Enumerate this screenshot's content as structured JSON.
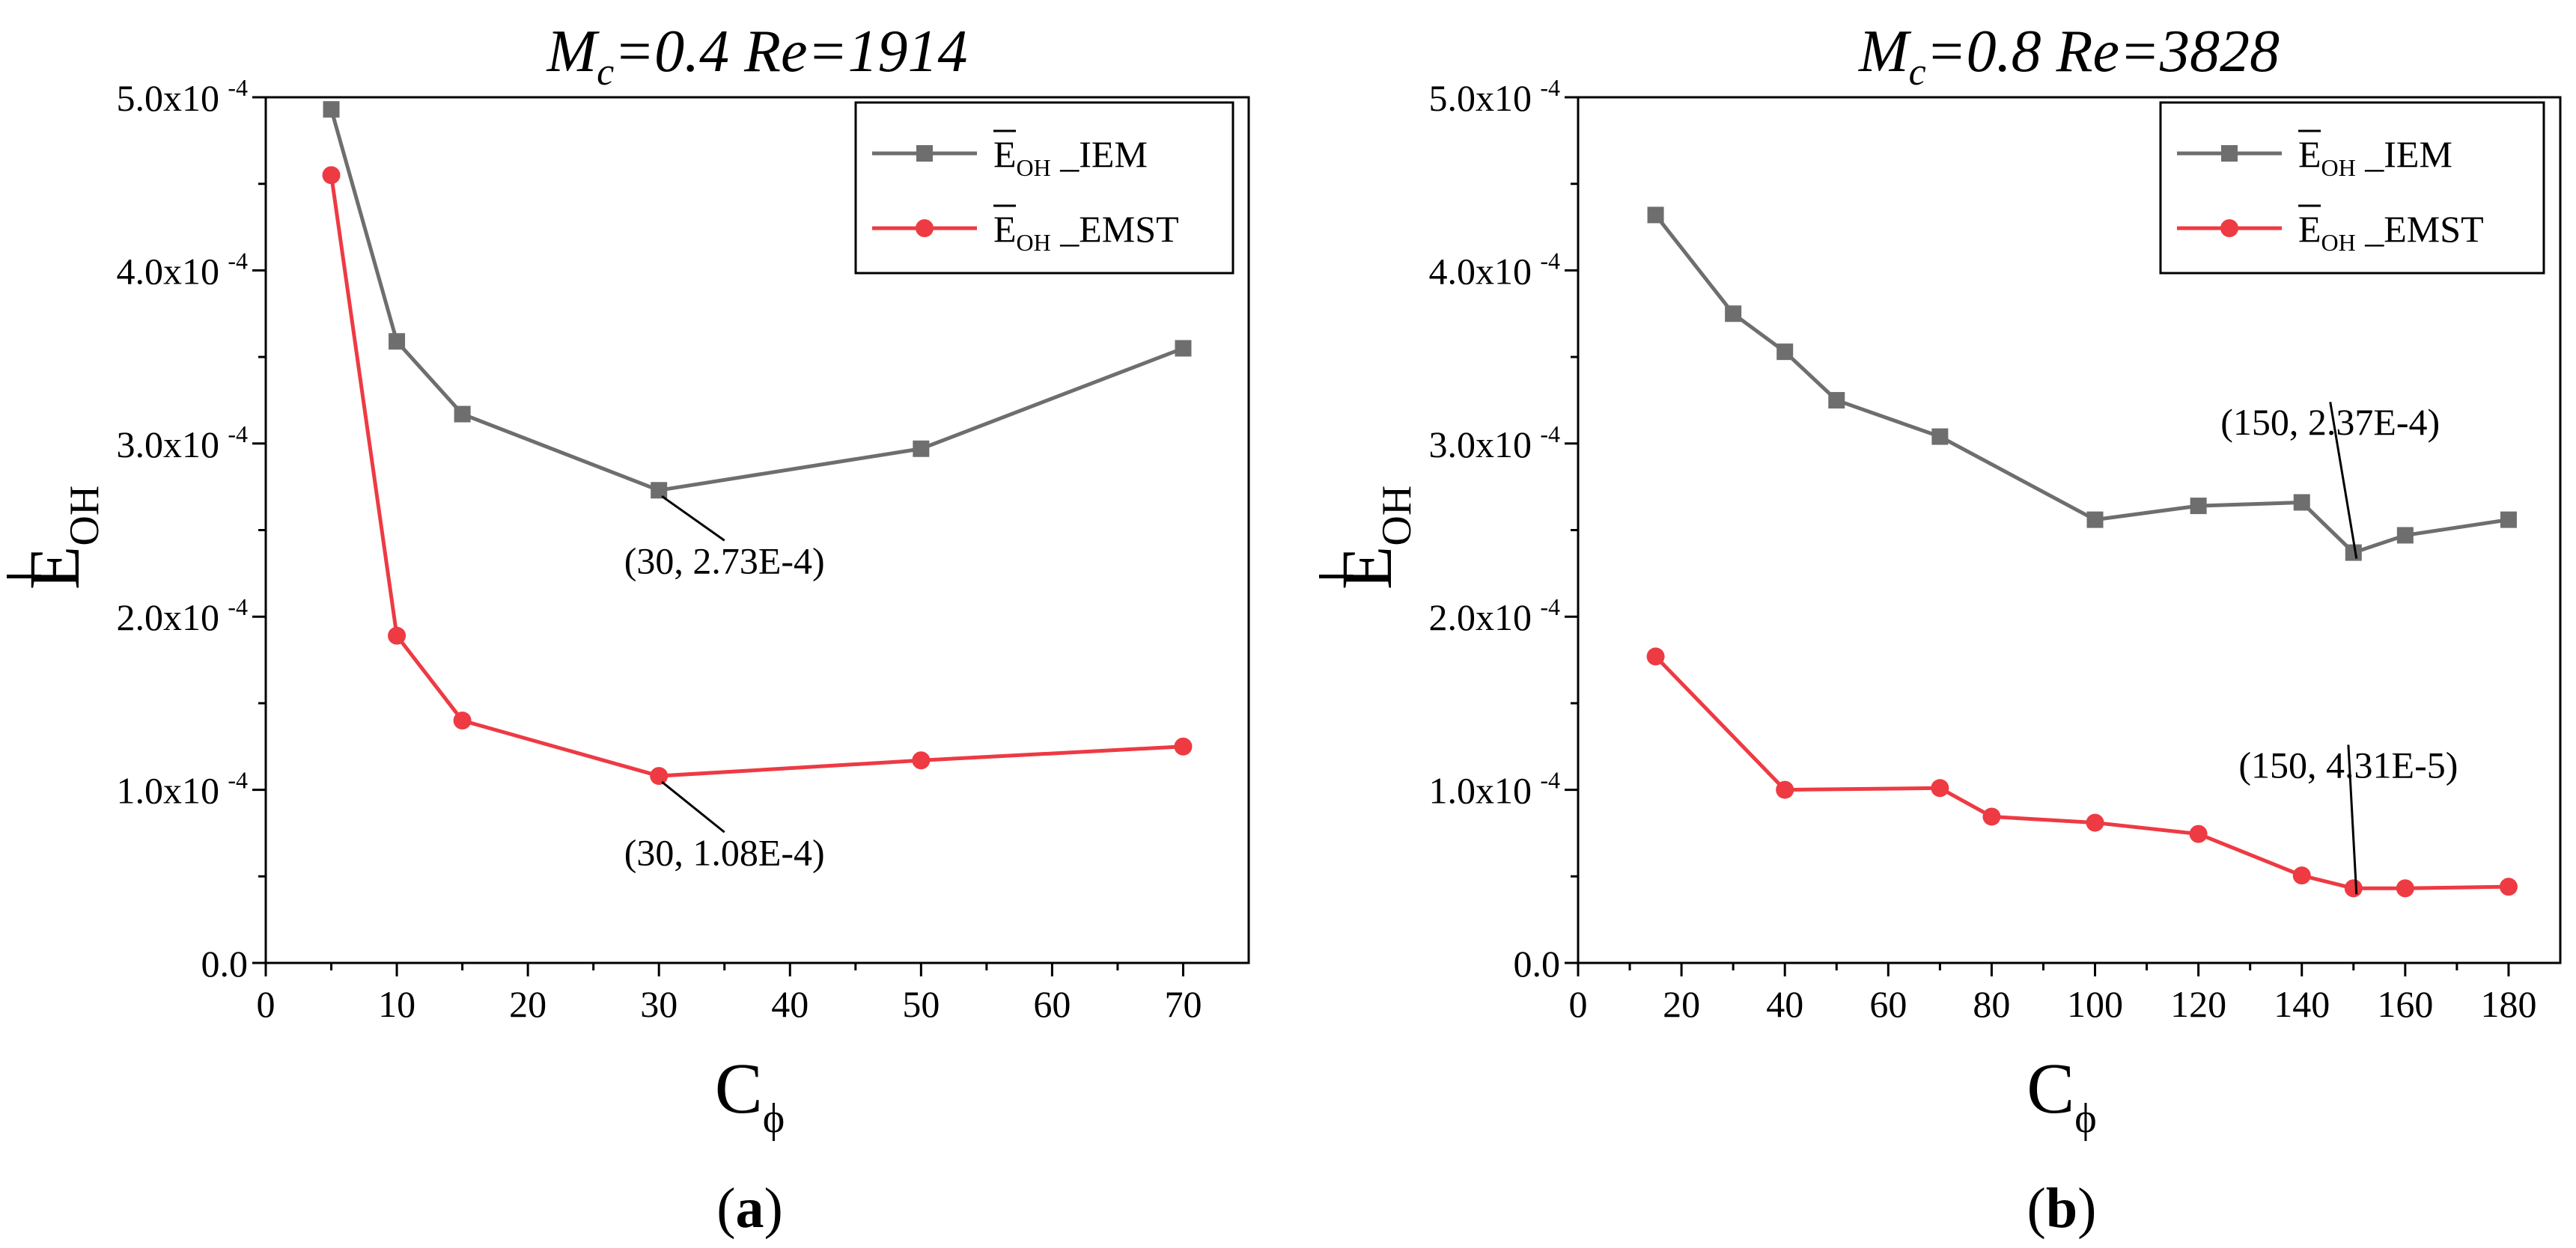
{
  "chart_data": [
    {
      "panel_label": "a",
      "type": "line",
      "title": {
        "m_main": "M",
        "m_sub": "c",
        "rest": "=0.4  Re=1914"
      },
      "xlabel": {
        "main": "C",
        "sub": "ϕ"
      },
      "ylabel": {
        "main": "E",
        "sub": "OH"
      },
      "xlim": [
        0,
        75
      ],
      "ylim": [
        0,
        0.0005
      ],
      "xticks": [
        0,
        10,
        20,
        30,
        40,
        50,
        60,
        70
      ],
      "yticks": [
        {
          "value": 0,
          "label": "0.0",
          "exp": ""
        },
        {
          "value": 0.0001,
          "label": "1.0x10",
          "exp": "-4"
        },
        {
          "value": 0.0002,
          "label": "2.0x10",
          "exp": "-4"
        },
        {
          "value": 0.0003,
          "label": "3.0x10",
          "exp": "-4"
        },
        {
          "value": 0.0004,
          "label": "4.0x10",
          "exp": "-4"
        },
        {
          "value": 0.0005,
          "label": "5.0x10",
          "exp": "-4"
        }
      ],
      "legend_position": "top-right",
      "series": [
        {
          "name": "Ē_OH _IEM",
          "legend_main": "E",
          "legend_sub": "OH",
          "legend_rest": " _IEM",
          "marker": "square",
          "color": "#6e6e6e",
          "x": [
            5,
            10,
            15,
            30,
            50,
            70
          ],
          "y": [
            0.000493,
            0.000359,
            0.000317,
            0.000273,
            0.000297,
            0.000355
          ]
        },
        {
          "name": "Ē_OH _EMST",
          "legend_main": "E",
          "legend_sub": "OH",
          "legend_rest": " _EMST",
          "marker": "circle",
          "color": "#ee3a43",
          "x": [
            5,
            10,
            15,
            30,
            50,
            70
          ],
          "y": [
            0.000455,
            0.000189,
            0.00014,
            0.000108,
            0.000117,
            0.000125
          ]
        }
      ],
      "annotations": [
        {
          "text": "(30, 2.73E-4)",
          "x": 30,
          "y": 0.000273,
          "tx": 35,
          "ty": 0.000225
        },
        {
          "text": "(30, 1.08E-4)",
          "x": 30,
          "y": 0.000108,
          "tx": 35,
          "ty": 5.65e-05
        }
      ]
    },
    {
      "panel_label": "b",
      "type": "line",
      "title": {
        "m_main": "M",
        "m_sub": "c",
        "rest": "=0.8  Re=3828"
      },
      "xlabel": {
        "main": "C",
        "sub": "ϕ"
      },
      "ylabel": {
        "main": "E",
        "sub": "OH"
      },
      "xlim": [
        0,
        190
      ],
      "ylim": [
        0,
        0.0005
      ],
      "xticks": [
        0,
        20,
        40,
        60,
        80,
        100,
        120,
        140,
        160,
        180
      ],
      "yticks": [
        {
          "value": 0,
          "label": "0.0",
          "exp": ""
        },
        {
          "value": 0.0001,
          "label": "1.0x10",
          "exp": "-4"
        },
        {
          "value": 0.0002,
          "label": "2.0x10",
          "exp": "-4"
        },
        {
          "value": 0.0003,
          "label": "3.0x10",
          "exp": "-4"
        },
        {
          "value": 0.0004,
          "label": "4.0x10",
          "exp": "-4"
        },
        {
          "value": 0.0005,
          "label": "5.0x10",
          "exp": "-4"
        }
      ],
      "legend_position": "top-right",
      "series": [
        {
          "name": "Ē_OH _IEM",
          "legend_main": "E",
          "legend_sub": "OH",
          "legend_rest": " _IEM",
          "marker": "square",
          "color": "#6e6e6e",
          "x": [
            15,
            30,
            40,
            50,
            70,
            100,
            120,
            140,
            150,
            160,
            180
          ],
          "y": [
            0.000432,
            0.000375,
            0.000353,
            0.000325,
            0.000304,
            0.000256,
            0.000264,
            0.000266,
            0.000237,
            0.000247,
            0.000256
          ]
        },
        {
          "name": "Ē_OH _EMST",
          "legend_main": "E",
          "legend_sub": "OH",
          "legend_rest": " _EMST",
          "marker": "circle",
          "color": "#ee3a43",
          "x": [
            15,
            40,
            70,
            80,
            100,
            120,
            140,
            150,
            160,
            180
          ],
          "y": [
            0.000177,
            0.0001,
            0.000101,
            8.45e-05,
            8.1e-05,
            7.45e-05,
            5.05e-05,
            4.31e-05,
            4.31e-05,
            4.4e-05
          ]
        }
      ],
      "annotations": [
        {
          "text": "(150, 2.37E-4)",
          "x": 150,
          "y": 0.000237,
          "tx": 145.5,
          "ty": 0.000305
        },
        {
          "text": "(150, 4.31E-5)",
          "x": 150,
          "y": 4.31e-05,
          "tx": 149,
          "ty": 0.000107
        }
      ]
    }
  ]
}
